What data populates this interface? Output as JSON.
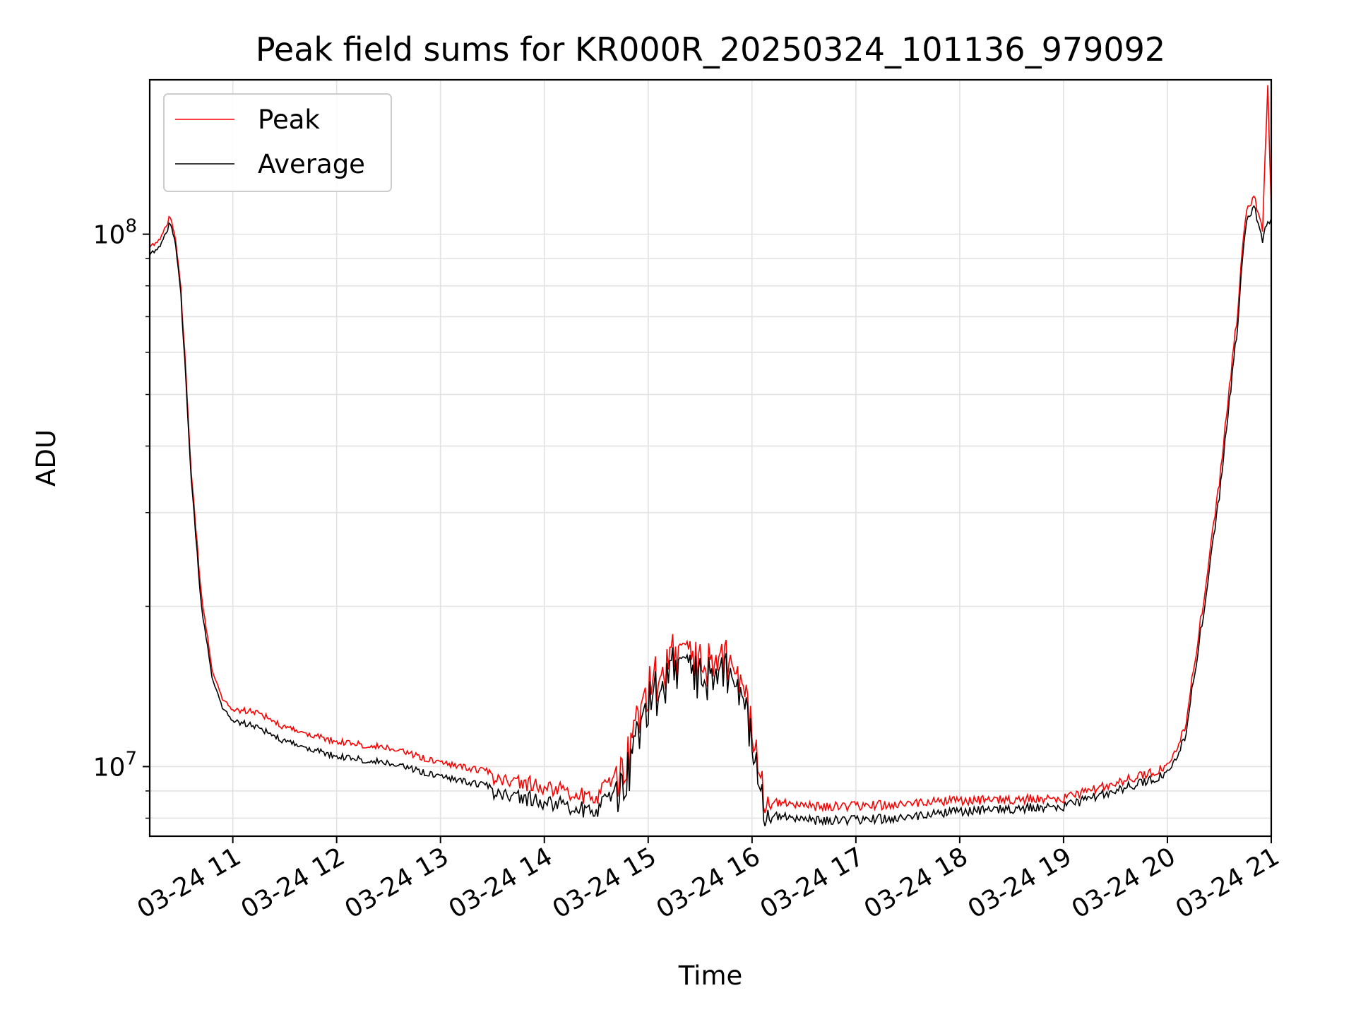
{
  "chart_data": {
    "type": "line",
    "title": "Peak field sums for KR000R_20250324_101136_979092",
    "xlabel": "Time",
    "ylabel": "ADU",
    "x_tick_labels": [
      "03-24 11",
      "03-24 12",
      "03-24 13",
      "03-24 14",
      "03-24 15",
      "03-24 16",
      "03-24 17",
      "03-24 18",
      "03-24 19",
      "03-24 20",
      "03-24 21"
    ],
    "x_ticks": [
      "2025-03-24 11:00",
      "2025-03-24 12:00",
      "2025-03-24 13:00",
      "2025-03-24 14:00",
      "2025-03-24 15:00",
      "2025-03-24 16:00",
      "2025-03-24 17:00",
      "2025-03-24 18:00",
      "2025-03-24 19:00",
      "2025-03-24 20:00",
      "2025-03-24 21:00"
    ],
    "y_tick_labels": [
      {
        "base": "10",
        "exp": "7",
        "value": 10000000
      },
      {
        "base": "10",
        "exp": "8",
        "value": 100000000
      }
    ],
    "xlim": [
      "2025-03-24 10:12",
      "2025-03-24 21:00"
    ],
    "ylim": [
      7400000,
      195000000
    ],
    "yscale": "log",
    "grid": true,
    "legend_position": "top-left",
    "series": [
      {
        "name": "Peak",
        "color": "#ff0000",
        "x": [
          "2025-03-24 10:12",
          "2025-03-24 10:18",
          "2025-03-24 10:24",
          "2025-03-24 10:27",
          "2025-03-24 10:30",
          "2025-03-24 10:33",
          "2025-03-24 10:36",
          "2025-03-24 10:42",
          "2025-03-24 10:48",
          "2025-03-24 10:54",
          "2025-03-24 11:00",
          "2025-03-24 11:15",
          "2025-03-24 11:30",
          "2025-03-24 12:00",
          "2025-03-24 12:30",
          "2025-03-24 13:00",
          "2025-03-24 13:30",
          "2025-03-24 14:00",
          "2025-03-24 14:30",
          "2025-03-24 14:45",
          "2025-03-24 15:00",
          "2025-03-24 15:15",
          "2025-03-24 15:30",
          "2025-03-24 15:45",
          "2025-03-24 16:00",
          "2025-03-24 16:10",
          "2025-03-24 16:30",
          "2025-03-24 17:00",
          "2025-03-24 17:30",
          "2025-03-24 18:00",
          "2025-03-24 18:30",
          "2025-03-24 19:00",
          "2025-03-24 19:30",
          "2025-03-24 20:00",
          "2025-03-24 20:10",
          "2025-03-24 20:20",
          "2025-03-24 20:30",
          "2025-03-24 20:40",
          "2025-03-24 20:45",
          "2025-03-24 20:50",
          "2025-03-24 20:55",
          "2025-03-24 20:58",
          "2025-03-24 21:00"
        ],
        "y": [
          95000000,
          100000000,
          110000000,
          98000000,
          80000000,
          55000000,
          36000000,
          21000000,
          15500000,
          13500000,
          13000000,
          12800000,
          12000000,
          11300000,
          11000000,
          10300000,
          9900000,
          9500000,
          9000000,
          10500000,
          15500000,
          18000000,
          17000000,
          18000000,
          13500000,
          8800000,
          8600000,
          8600000,
          8700000,
          8800000,
          8850000,
          8900000,
          9500000,
          10200000,
          12000000,
          20000000,
          35000000,
          70000000,
          110000000,
          120000000,
          105000000,
          195000000,
          112000000
        ]
      },
      {
        "name": "Average",
        "color": "#000000",
        "x": [
          "2025-03-24 10:12",
          "2025-03-24 10:18",
          "2025-03-24 10:24",
          "2025-03-24 10:27",
          "2025-03-24 10:30",
          "2025-03-24 10:33",
          "2025-03-24 10:36",
          "2025-03-24 10:42",
          "2025-03-24 10:48",
          "2025-03-24 10:54",
          "2025-03-24 11:00",
          "2025-03-24 11:15",
          "2025-03-24 11:30",
          "2025-03-24 12:00",
          "2025-03-24 12:30",
          "2025-03-24 13:00",
          "2025-03-24 13:30",
          "2025-03-24 14:00",
          "2025-03-24 14:30",
          "2025-03-24 14:45",
          "2025-03-24 15:00",
          "2025-03-24 15:15",
          "2025-03-24 15:30",
          "2025-03-24 15:45",
          "2025-03-24 16:00",
          "2025-03-24 16:10",
          "2025-03-24 16:30",
          "2025-03-24 17:00",
          "2025-03-24 17:30",
          "2025-03-24 18:00",
          "2025-03-24 18:30",
          "2025-03-24 19:00",
          "2025-03-24 19:30",
          "2025-03-24 20:00",
          "2025-03-24 20:10",
          "2025-03-24 20:20",
          "2025-03-24 20:30",
          "2025-03-24 20:40",
          "2025-03-24 20:45",
          "2025-03-24 20:50",
          "2025-03-24 20:55",
          "2025-03-24 20:58",
          "2025-03-24 21:00"
        ],
        "y": [
          92000000,
          97000000,
          107000000,
          96000000,
          78000000,
          53000000,
          35000000,
          20000000,
          15000000,
          13000000,
          12400000,
          12000000,
          11300000,
          10600000,
          10300000,
          9700000,
          9300000,
          8900000,
          8500000,
          9800000,
          14500000,
          17000000,
          16000000,
          17000000,
          12800000,
          8300000,
          8100000,
          8100000,
          8200000,
          8400000,
          8500000,
          8600000,
          9200000,
          9900000,
          11500000,
          19000000,
          33000000,
          66000000,
          105000000,
          115000000,
          100000000,
          108000000,
          107000000
        ]
      }
    ]
  }
}
